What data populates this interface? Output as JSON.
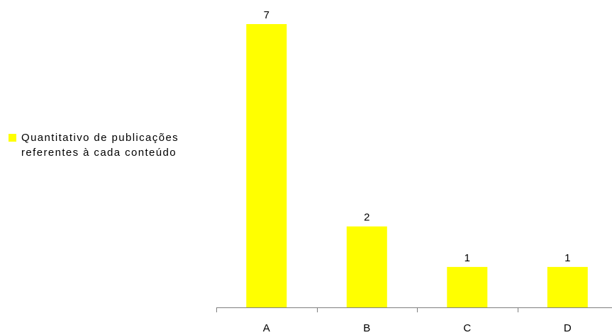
{
  "chart_data": {
    "type": "bar",
    "categories": [
      "A",
      "B",
      "C",
      "D"
    ],
    "series": [
      {
        "name": "Quantitativo de publicações referentes à cada conteúdo",
        "values": [
          7,
          2,
          1,
          1
        ],
        "color": "#ffff00"
      }
    ],
    "data_labels": [
      "7",
      "2",
      "1",
      "1"
    ],
    "ylim": [
      0,
      7
    ],
    "grid": false,
    "y_axis_visible": false,
    "legend": {
      "position": "left",
      "entries": [
        "Quantitativo de publicações referentes à cada conteúdo"
      ]
    },
    "title": "",
    "xlabel": "",
    "ylabel": ""
  }
}
